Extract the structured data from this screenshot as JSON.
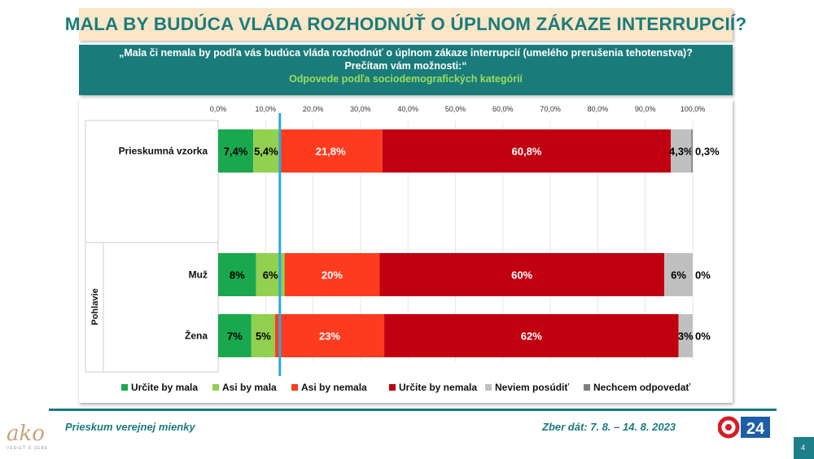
{
  "title": "MALA BY BUDÚCA VLÁDA ROZHODNÚŤ O ÚPLNOM ZÁKAZE INTERRUPCIÍ?",
  "question": "„Mala či nemala by podľa vás budúca vláda rozhodnúť o úplnom zákaze interrupcií (umelého prerušenia tehotenstva)? Prečítam vám možnosti:“",
  "subtitle": "Odpovede podľa sociodemografických kategórií",
  "footer": {
    "left": "Prieskum verejnej mienky",
    "right": "Zber dát: 7. 8. – 14. 8. 2023",
    "logo": "ako",
    "logo_tagline": "VEDIEŤ O SEBE",
    "tv_logo": "24",
    "page_number": "4"
  },
  "colors": {
    "title_text": "#1a7c7c",
    "title_bg": "#fbe6c8",
    "question_bg": "#1a7b7b",
    "subtitle_text": "#9bdc5c",
    "reference_line": "#29a9e1"
  },
  "chart_data": {
    "type": "bar",
    "orientation": "horizontal",
    "stacked": true,
    "xlim": [
      0,
      100
    ],
    "x_tick_labels": [
      "0,0%",
      "10,0%",
      "20,0%",
      "30,0%",
      "40,0%",
      "50,0%",
      "60,0%",
      "70,0%",
      "80,0%",
      "90,0%",
      "100,0%"
    ],
    "reference_line_value": 13,
    "group_label": "Pohlavie",
    "categories": [
      "Prieskumná vzorka",
      "Muž",
      "Žena"
    ],
    "series": [
      {
        "name": "Určite by mala",
        "color": "#1aa84f",
        "values": [
          7.4,
          8,
          7
        ],
        "labels": [
          "7,4%",
          "8%",
          "7%"
        ]
      },
      {
        "name": "Asi by mala",
        "color": "#92d050",
        "values": [
          5.4,
          6,
          5
        ],
        "labels": [
          "5,4%",
          "6%",
          "5%"
        ]
      },
      {
        "name": "Asi by nemala",
        "color": "#ff3b1f",
        "values": [
          21.8,
          20,
          23
        ],
        "labels": [
          "21,8%",
          "20%",
          "23%"
        ]
      },
      {
        "name": "Určite by nemala",
        "color": "#c00010",
        "values": [
          60.8,
          60,
          62
        ],
        "labels": [
          "60,8%",
          "60%",
          "62%"
        ]
      },
      {
        "name": "Neviem posúdiť",
        "color": "#c0c0c0",
        "values": [
          4.3,
          6,
          3
        ],
        "labels": [
          "4,3%",
          "6%",
          "3%"
        ]
      },
      {
        "name": "Nechcem odpovedať",
        "color": "#7f7f7f",
        "values": [
          0.3,
          0,
          0
        ],
        "labels": [
          "0,3%",
          "0%",
          "0%"
        ]
      }
    ]
  }
}
